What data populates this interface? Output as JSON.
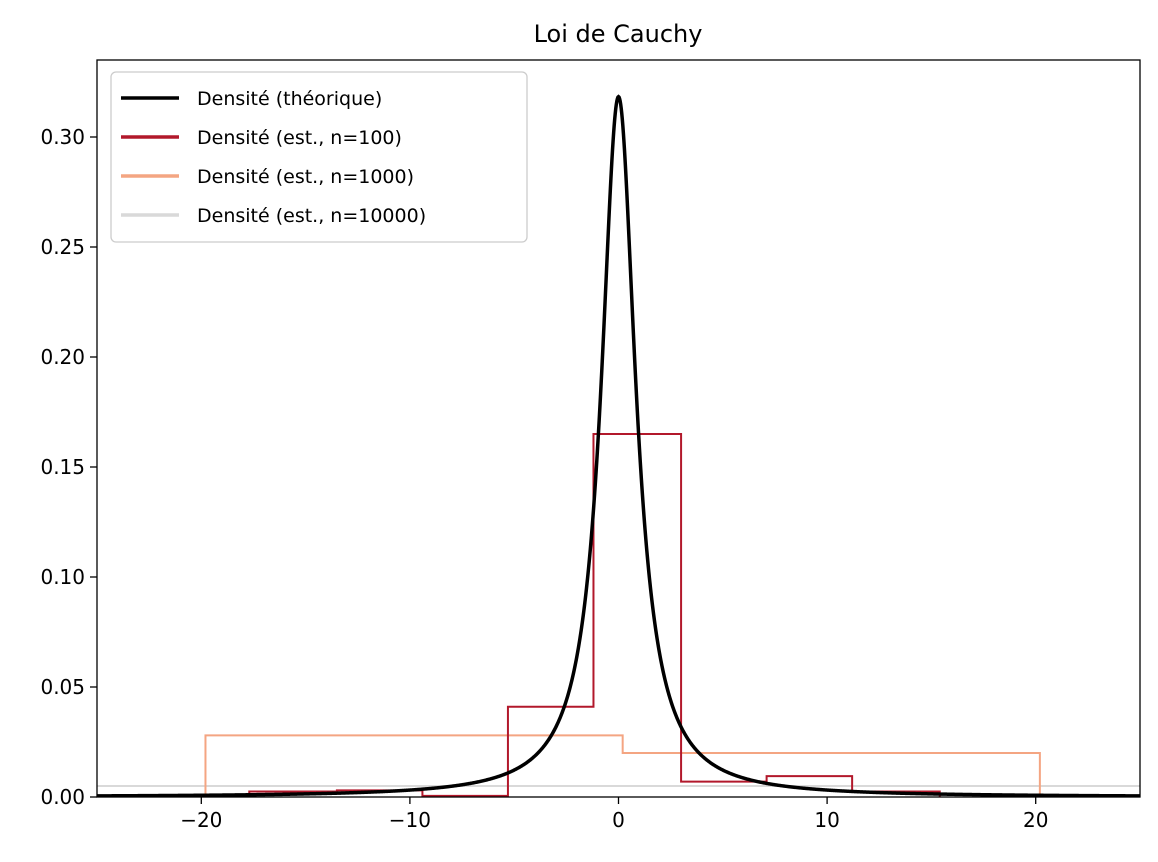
{
  "chart_data": {
    "type": "line",
    "title": "Loi de Cauchy",
    "xlabel": "",
    "ylabel": "",
    "xlim": [
      -25,
      25
    ],
    "ylim": [
      0,
      0.335
    ],
    "x_ticks": [
      -20,
      -10,
      0,
      10,
      20
    ],
    "x_tick_labels": [
      "−20",
      "−10",
      "0",
      "10",
      "20"
    ],
    "y_ticks": [
      0.0,
      0.05,
      0.1,
      0.15,
      0.2,
      0.25,
      0.3
    ],
    "y_tick_labels": [
      "0.00",
      "0.05",
      "0.10",
      "0.15",
      "0.20",
      "0.25",
      "0.30"
    ],
    "grid": false,
    "legend_position": "top-left",
    "series": [
      {
        "name": "Densité (théorique)",
        "kind": "line",
        "color": "#000000",
        "function": "cauchy_pdf",
        "x0": 0,
        "gamma": 1
      },
      {
        "name": "Densité (est., n=100)",
        "kind": "step-histogram",
        "color": "#b2182b",
        "bin_edges": [
          -17.7,
          -13.5,
          -9.4,
          -5.3,
          -1.2,
          3.0,
          7.1,
          11.2,
          15.4
        ],
        "values": [
          0.0025,
          0.003,
          0.0005,
          0.041,
          0.165,
          0.007,
          0.0095,
          0.0025
        ]
      },
      {
        "name": "Densité (est., n=1000)",
        "kind": "step-histogram",
        "color": "#f4a582",
        "bin_edges": [
          -19.8,
          0.2,
          20.2
        ],
        "values": [
          0.028,
          0.02
        ]
      },
      {
        "name": "Densité (est., n=10000)",
        "kind": "step-histogram",
        "color": "#d9d9d9",
        "bin_edges": [
          -26,
          26
        ],
        "values": [
          0.005
        ]
      }
    ]
  }
}
